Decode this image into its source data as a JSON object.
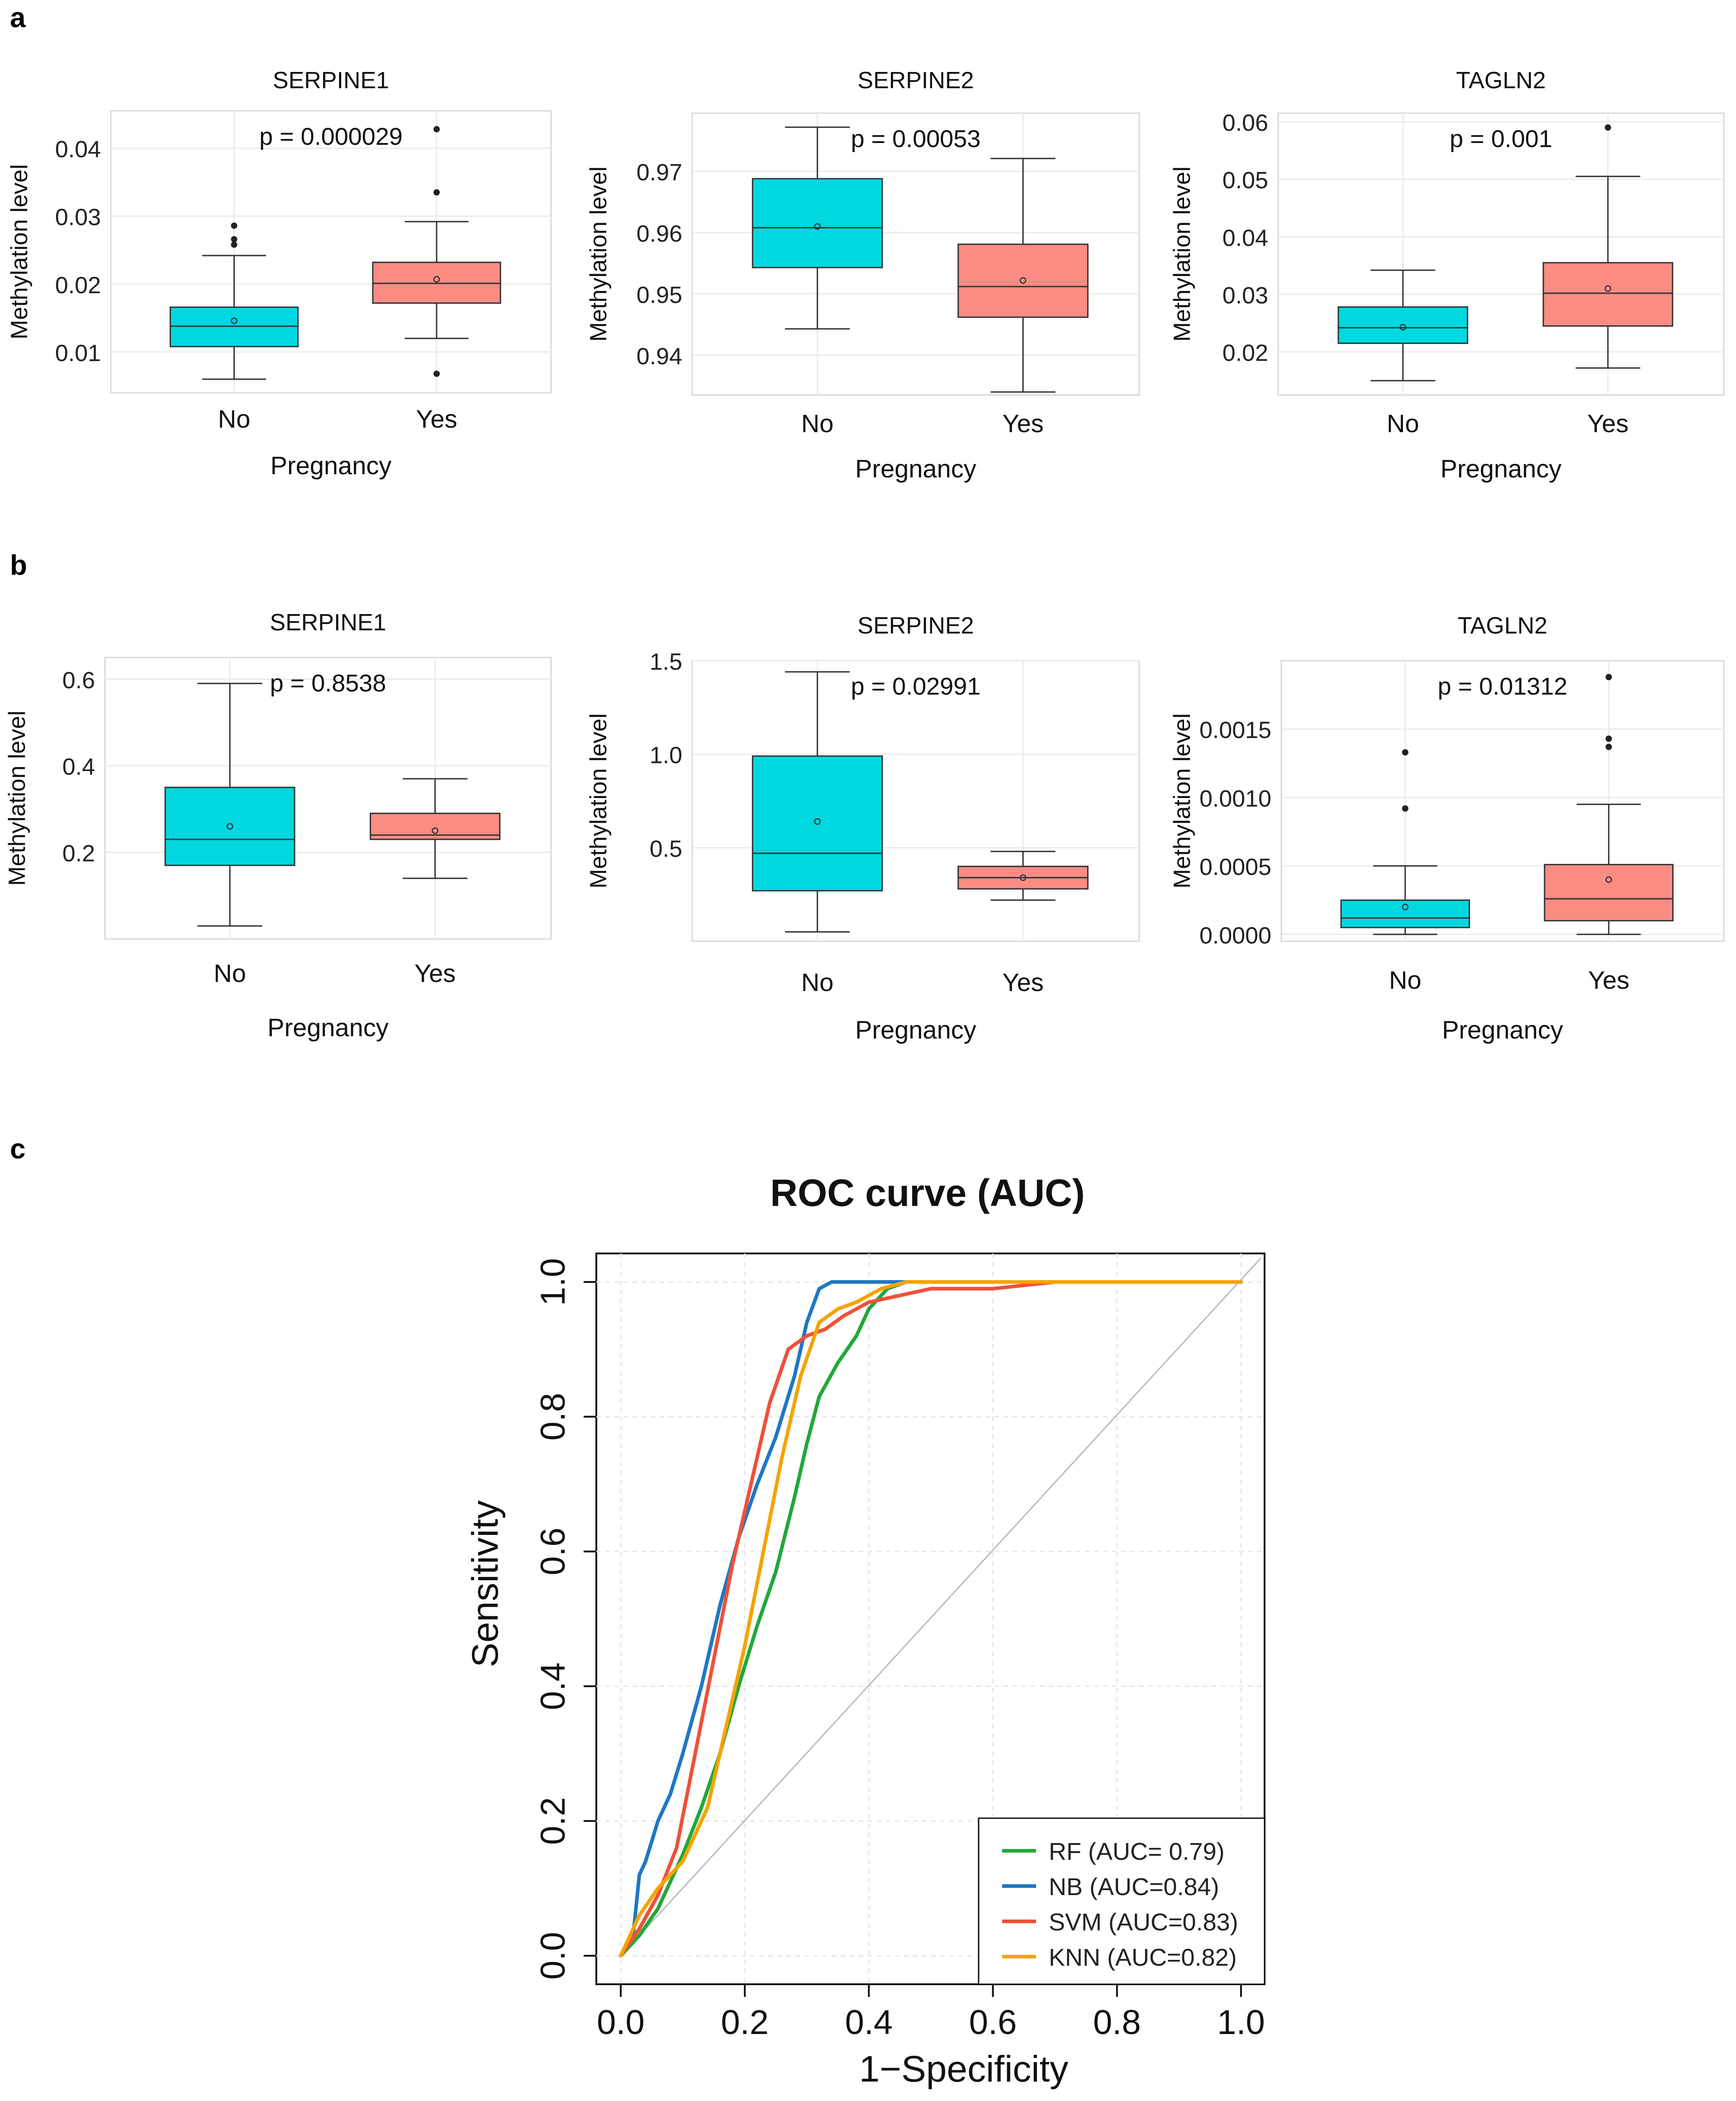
{
  "panel_labels": [
    "a",
    "b",
    "c"
  ],
  "colors": {
    "no_fill": "#00D8E0",
    "yes_fill": "#FA8C84",
    "rf": "#22A83A",
    "nb": "#1F77C4",
    "svm": "#F0503A",
    "knn": "#F5A300",
    "grid": "#EBEBEB",
    "diagonal": "#BBBBBB"
  },
  "chart_data": [
    {
      "type": "box",
      "panel": "a",
      "title": "SERPINE1",
      "xlabel": "Pregnancy",
      "ylabel": "Methylation level",
      "categories": [
        "No",
        "Yes"
      ],
      "p_label": "p = 0.000029",
      "ylim": [
        0.004,
        0.0455
      ],
      "yticks": [
        0.01,
        0.02,
        0.03,
        0.04
      ],
      "ytick_labels": [
        "0.01",
        "0.02",
        "0.03",
        "0.04"
      ],
      "boxes": [
        {
          "min": 0.006,
          "q1": 0.0108,
          "median": 0.0138,
          "q3": 0.0166,
          "max": 0.0242,
          "mean": 0.0146,
          "outliers": [
            0.0258,
            0.0266,
            0.0286
          ]
        },
        {
          "min": 0.012,
          "q1": 0.0172,
          "median": 0.0201,
          "q3": 0.0232,
          "max": 0.0292,
          "mean": 0.0207,
          "outliers": [
            0.0068,
            0.0335,
            0.0428
          ]
        }
      ]
    },
    {
      "type": "box",
      "panel": "a",
      "title": "SERPINE2",
      "xlabel": "Pregnancy",
      "ylabel": "Methylation level",
      "categories": [
        "No",
        "Yes"
      ],
      "p_label": "p = 0.00053",
      "ylim": [
        0.9335,
        0.9795
      ],
      "yticks": [
        0.94,
        0.95,
        0.96,
        0.97
      ],
      "ytick_labels": [
        "0.94",
        "0.95",
        "0.96",
        "0.97"
      ],
      "boxes": [
        {
          "min": 0.9443,
          "q1": 0.9543,
          "median": 0.9608,
          "q3": 0.9688,
          "max": 0.9772,
          "mean": 0.961,
          "outliers": []
        },
        {
          "min": 0.934,
          "q1": 0.9462,
          "median": 0.9512,
          "q3": 0.9581,
          "max": 0.9721,
          "mean": 0.9522,
          "outliers": []
        }
      ]
    },
    {
      "type": "box",
      "panel": "a",
      "title": "TAGLN2",
      "xlabel": "Pregnancy",
      "ylabel": "Methylation level",
      "categories": [
        "No",
        "Yes"
      ],
      "p_label": "p = 0.001",
      "ylim": [
        0.0125,
        0.0615
      ],
      "yticks": [
        0.02,
        0.03,
        0.04,
        0.05,
        0.06
      ],
      "ytick_labels": [
        "0.02",
        "0.03",
        "0.04",
        "0.05",
        "0.06"
      ],
      "boxes": [
        {
          "min": 0.015,
          "q1": 0.0215,
          "median": 0.0242,
          "q3": 0.0278,
          "max": 0.0342,
          "mean": 0.0243,
          "outliers": []
        },
        {
          "min": 0.0172,
          "q1": 0.0245,
          "median": 0.0302,
          "q3": 0.0355,
          "max": 0.0505,
          "mean": 0.031,
          "outliers": [
            0.059
          ]
        }
      ]
    },
    {
      "type": "box",
      "panel": "b",
      "title": "SERPINE1",
      "xlabel": "Pregnancy",
      "ylabel": "Methylation level",
      "categories": [
        "No",
        "Yes"
      ],
      "p_label": "p = 0.8538",
      "ylim": [
        0.0,
        0.65
      ],
      "yticks": [
        0.2,
        0.4,
        0.6
      ],
      "ytick_labels": [
        "0.2",
        "0.4",
        "0.6"
      ],
      "boxes": [
        {
          "min": 0.03,
          "q1": 0.17,
          "median": 0.23,
          "q3": 0.35,
          "max": 0.59,
          "mean": 0.26,
          "outliers": []
        },
        {
          "min": 0.14,
          "q1": 0.23,
          "median": 0.24,
          "q3": 0.29,
          "max": 0.37,
          "mean": 0.25,
          "outliers": []
        }
      ]
    },
    {
      "type": "box",
      "panel": "b",
      "title": "SERPINE2",
      "xlabel": "Pregnancy",
      "ylabel": "Methylation level",
      "categories": [
        "No",
        "Yes"
      ],
      "p_label": "p = 0.02991",
      "ylim": [
        0.0,
        1.5
      ],
      "yticks": [
        0.5,
        1.0,
        1.5
      ],
      "ytick_labels": [
        "0.5",
        "1.0",
        "1.5"
      ],
      "boxes": [
        {
          "min": 0.05,
          "q1": 0.27,
          "median": 0.47,
          "q3": 0.99,
          "max": 1.44,
          "mean": 0.64,
          "outliers": []
        },
        {
          "min": 0.22,
          "q1": 0.28,
          "median": 0.34,
          "q3": 0.4,
          "max": 0.48,
          "mean": 0.34,
          "outliers": []
        }
      ]
    },
    {
      "type": "box",
      "panel": "b",
      "title": "TAGLN2",
      "xlabel": "Pregnancy",
      "ylabel": "Methylation level",
      "categories": [
        "No",
        "Yes"
      ],
      "p_label": "p = 0.01312",
      "ylim": [
        -5e-05,
        0.002
      ],
      "yticks": [
        0.0,
        0.0005,
        0.001,
        0.0015
      ],
      "ytick_labels": [
        "0.0000",
        "0.0005",
        "0.0010",
        "0.0015"
      ],
      "boxes": [
        {
          "min": 0.0,
          "q1": 5e-05,
          "median": 0.00012,
          "q3": 0.00025,
          "max": 0.0005,
          "mean": 0.0002,
          "outliers": [
            0.00092,
            0.00133
          ]
        },
        {
          "min": 0.0,
          "q1": 0.0001,
          "median": 0.00026,
          "q3": 0.00051,
          "max": 0.00095,
          "mean": 0.0004,
          "outliers": [
            0.00137,
            0.00143,
            0.00188
          ]
        }
      ]
    },
    {
      "type": "line",
      "panel": "c",
      "title": "ROC curve (AUC)",
      "xlabel": "1−Specificity",
      "ylabel": "Sensitivity",
      "xlim": [
        0,
        1
      ],
      "ylim": [
        0,
        1
      ],
      "xticks": [
        0.0,
        0.2,
        0.4,
        0.6,
        0.8,
        1.0
      ],
      "xtick_labels": [
        "0.0",
        "0.2",
        "0.4",
        "0.6",
        "0.8",
        "1.0"
      ],
      "yticks": [
        0.0,
        0.2,
        0.4,
        0.6,
        0.8,
        1.0
      ],
      "ytick_labels": [
        "0.0",
        "0.2",
        "0.4",
        "0.6",
        "0.8",
        "1.0"
      ],
      "legend_position": "bottom-right",
      "series": [
        {
          "name": "RF (AUC= 0.79)",
          "key": "rf",
          "x": [
            0.0,
            0.03,
            0.06,
            0.1,
            0.13,
            0.16,
            0.19,
            0.22,
            0.25,
            0.28,
            0.3,
            0.32,
            0.35,
            0.38,
            0.4,
            0.43,
            0.46,
            0.5,
            0.6,
            0.8,
            1.0
          ],
          "y": [
            0.0,
            0.03,
            0.07,
            0.15,
            0.22,
            0.3,
            0.4,
            0.49,
            0.57,
            0.68,
            0.76,
            0.83,
            0.88,
            0.92,
            0.96,
            0.99,
            1.0,
            1.0,
            1.0,
            1.0,
            1.0
          ]
        },
        {
          "name": "NB (AUC=0.84)",
          "key": "nb",
          "x": [
            0.0,
            0.02,
            0.03,
            0.04,
            0.06,
            0.08,
            0.1,
            0.13,
            0.16,
            0.19,
            0.22,
            0.25,
            0.28,
            0.3,
            0.32,
            0.34,
            0.4,
            0.6,
            0.8,
            1.0
          ],
          "y": [
            0.0,
            0.03,
            0.12,
            0.14,
            0.2,
            0.24,
            0.3,
            0.4,
            0.52,
            0.62,
            0.7,
            0.77,
            0.86,
            0.94,
            0.99,
            1.0,
            1.0,
            1.0,
            1.0,
            1.0
          ]
        },
        {
          "name": "SVM (AUC=0.83)",
          "key": "svm",
          "x": [
            0.0,
            0.03,
            0.06,
            0.09,
            0.12,
            0.15,
            0.18,
            0.21,
            0.24,
            0.27,
            0.3,
            0.33,
            0.36,
            0.4,
            0.45,
            0.5,
            0.6,
            0.7,
            0.8,
            0.9,
            1.0
          ],
          "y": [
            0.0,
            0.04,
            0.09,
            0.16,
            0.3,
            0.44,
            0.58,
            0.7,
            0.82,
            0.9,
            0.92,
            0.93,
            0.95,
            0.97,
            0.98,
            0.99,
            0.99,
            1.0,
            1.0,
            1.0,
            1.0
          ]
        },
        {
          "name": "KNN (AUC=0.82)",
          "key": "knn",
          "x": [
            0.0,
            0.03,
            0.06,
            0.1,
            0.14,
            0.17,
            0.2,
            0.23,
            0.26,
            0.29,
            0.32,
            0.35,
            0.38,
            0.42,
            0.46,
            0.5,
            0.6,
            0.8,
            1.0
          ],
          "y": [
            0.0,
            0.06,
            0.1,
            0.14,
            0.22,
            0.34,
            0.46,
            0.6,
            0.74,
            0.86,
            0.94,
            0.96,
            0.97,
            0.99,
            1.0,
            1.0,
            1.0,
            1.0,
            1.0
          ]
        }
      ]
    }
  ]
}
